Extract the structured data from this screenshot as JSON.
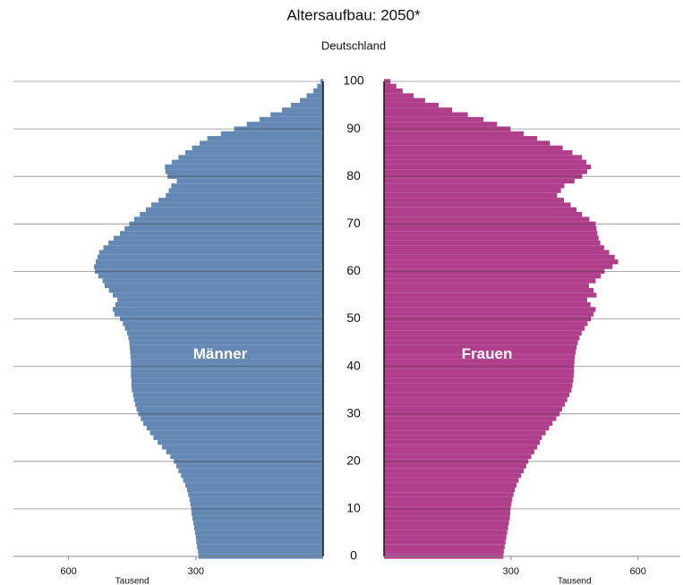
{
  "chart_data": {
    "type": "pyramid",
    "title": "Altersaufbau: 2050*",
    "subtitle": "Deutschland",
    "categories": [
      0,
      1,
      2,
      3,
      4,
      5,
      6,
      7,
      8,
      9,
      10,
      11,
      12,
      13,
      14,
      15,
      16,
      17,
      18,
      19,
      20,
      21,
      22,
      23,
      24,
      25,
      26,
      27,
      28,
      29,
      30,
      31,
      32,
      33,
      34,
      35,
      36,
      37,
      38,
      39,
      40,
      41,
      42,
      43,
      44,
      45,
      46,
      47,
      48,
      49,
      50,
      51,
      52,
      53,
      54,
      55,
      56,
      57,
      58,
      59,
      60,
      61,
      62,
      63,
      64,
      65,
      66,
      67,
      68,
      69,
      70,
      71,
      72,
      73,
      74,
      75,
      76,
      77,
      78,
      79,
      80,
      81,
      82,
      83,
      84,
      85,
      86,
      87,
      88,
      89,
      90,
      91,
      92,
      93,
      94,
      95,
      96,
      97,
      98,
      99,
      100
    ],
    "ylim": [
      0,
      100
    ],
    "yticks": [
      0,
      10,
      20,
      30,
      40,
      50,
      60,
      70,
      80,
      90,
      100
    ],
    "grid": true,
    "series": [
      {
        "name": "Männer",
        "side": "left",
        "color": "#6288b3",
        "xlim": [
          0,
          730
        ],
        "xticks": [
          600,
          300
        ],
        "xlabel": "Tausend",
        "values": [
          294,
          295,
          297,
          299,
          300,
          302,
          304,
          306,
          308,
          310,
          311,
          313,
          315,
          318,
          321,
          325,
          330,
          335,
          341,
          346,
          352,
          360,
          370,
          380,
          390,
          400,
          408,
          416,
          424,
          430,
          436,
          440,
          443,
          446,
          448,
          451,
          452,
          452,
          453,
          453,
          453,
          453,
          454,
          455,
          456,
          457,
          459,
          462,
          467,
          472,
          479,
          492,
          496,
          490,
          485,
          496,
          505,
          515,
          520,
          530,
          538,
          540,
          536,
          532,
          528,
          518,
          506,
          494,
          479,
          468,
          457,
          445,
          432,
          418,
          405,
          388,
          371,
          364,
          358,
          345,
          367,
          372,
          373,
          357,
          341,
          325,
          309,
          291,
          273,
          241,
          210,
          180,
          150,
          124,
          97,
          76,
          55,
          39,
          23,
          14,
          6
        ]
      },
      {
        "name": "Frauen",
        "side": "right",
        "color": "#b03f8b",
        "xlim": [
          0,
          700
        ],
        "xticks": [
          300,
          600
        ],
        "xlabel": "Tausend",
        "values": [
          282,
          283,
          285,
          287,
          289,
          291,
          293,
          295,
          297,
          298,
          299,
          301,
          303,
          306,
          309,
          313,
          318,
          324,
          330,
          336,
          341,
          348,
          355,
          362,
          368,
          373,
          382,
          390,
          398,
          407,
          415,
          421,
          427,
          433,
          438,
          443,
          445,
          447,
          448,
          449,
          449,
          450,
          451,
          453,
          455,
          458,
          462,
          467,
          474,
          481,
          489,
          495,
          500,
          488,
          480,
          502,
          495,
          484,
          500,
          512,
          521,
          540,
          553,
          545,
          532,
          520,
          511,
          507,
          504,
          502,
          500,
          485,
          468,
          455,
          441,
          425,
          409,
          418,
          426,
          450,
          468,
          480,
          489,
          478,
          468,
          445,
          422,
          392,
          362,
          330,
          299,
          267,
          235,
          198,
          161,
          129,
          97,
          70,
          44,
          29,
          15
        ]
      }
    ]
  }
}
